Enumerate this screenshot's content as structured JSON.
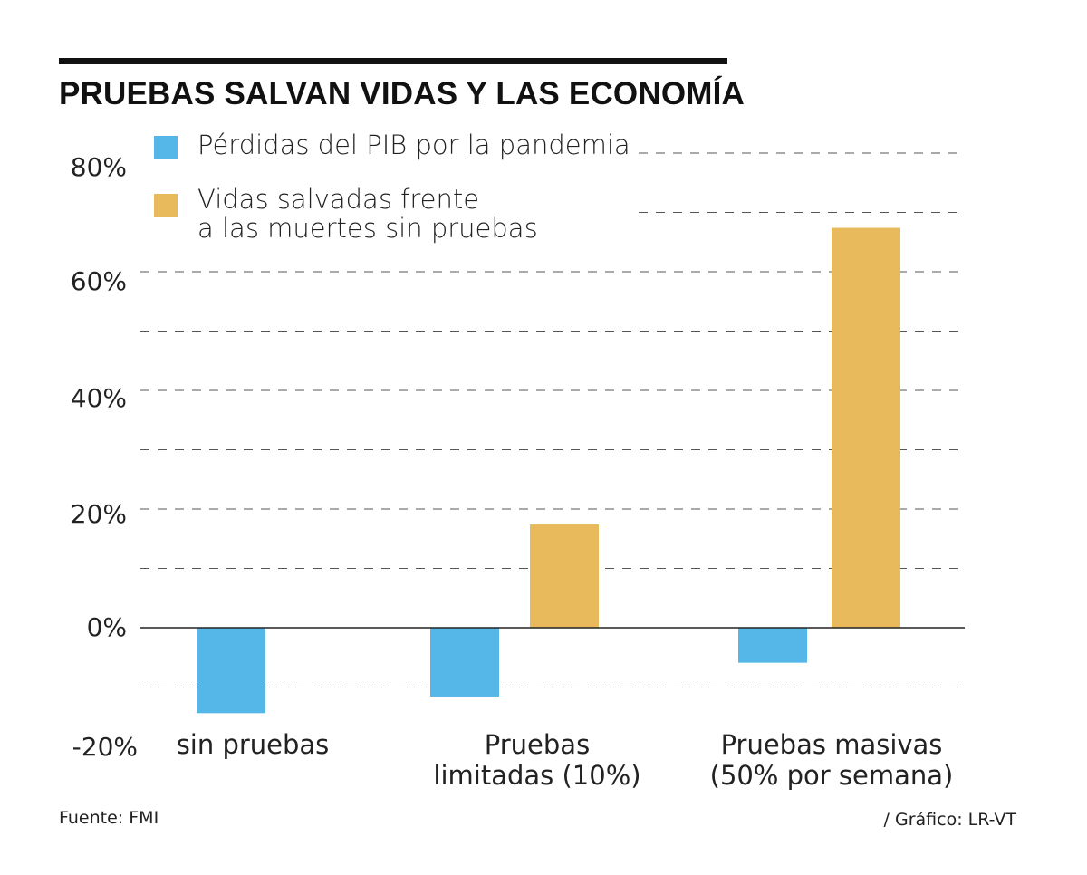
{
  "chart_data": {
    "type": "bar",
    "title": "PRUEBAS SALVAN VIDAS Y LAS ECONOMÍA",
    "categories": [
      "sin pruebas",
      "Pruebas\nlimitadas (10%)",
      "Pruebas masivas\n(50% por semana)"
    ],
    "series": [
      {
        "name": "Pérdidas del PIB por la pandemia",
        "color": "#55b7e8",
        "values": [
          -14.4,
          -11.6,
          -5.9
        ]
      },
      {
        "name": "Vidas salvadas frente\na las muertes sin pruebas",
        "color": "#e8ba5c",
        "values": [
          null,
          17.4,
          67.4
        ]
      }
    ],
    "yticks": [
      {
        "value": 80,
        "label": "80%"
      },
      {
        "value": 60,
        "label": "60%"
      },
      {
        "value": 40,
        "label": "40%"
      },
      {
        "value": 20,
        "label": "20%"
      },
      {
        "value": 0,
        "label": "0%"
      },
      {
        "value": -20,
        "label": "-20%"
      }
    ],
    "ylim": [
      -15,
      80
    ],
    "grid": true,
    "legend": "top-left",
    "xlabel": "",
    "ylabel": ""
  },
  "footer": {
    "source": "Fuente: FMI",
    "credit": "/ Gráfico: LR-VT"
  }
}
